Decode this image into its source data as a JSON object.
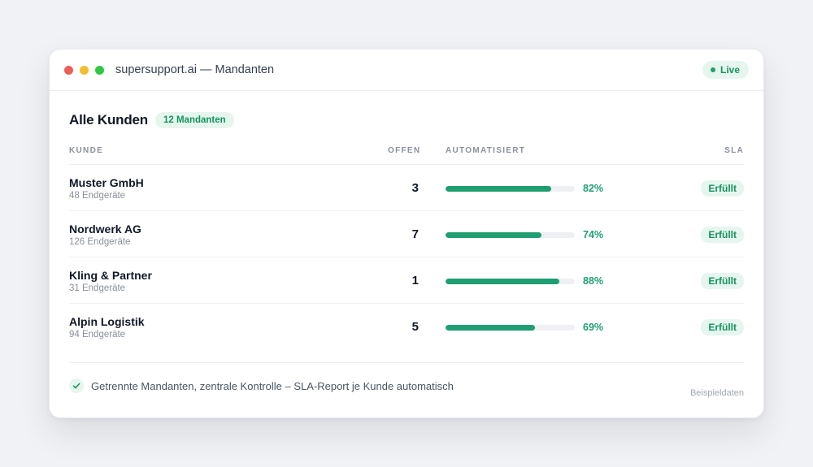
{
  "window": {
    "title": "supersupport.ai — Mandanten",
    "status": "Live"
  },
  "section": {
    "heading": "Alle Kunden",
    "badge": "12 Mandanten"
  },
  "table": {
    "headers": {
      "kunde": "KUNDE",
      "offen": "OFFEN",
      "auto": "AUTOMATISIERT",
      "sla": "SLA"
    },
    "rows": [
      {
        "name": "Muster GmbH",
        "devices": "48 Endgeräte",
        "open": "3",
        "automated_percent": 82,
        "automated_label": "82%",
        "sla": "Erfüllt"
      },
      {
        "name": "Nordwerk AG",
        "devices": "126 Endgeräte",
        "open": "7",
        "automated_percent": 74,
        "automated_label": "74%",
        "sla": "Erfüllt"
      },
      {
        "name": "Kling & Partner",
        "devices": "31 Endgeräte",
        "open": "1",
        "automated_percent": 88,
        "automated_label": "88%",
        "sla": "Erfüllt"
      },
      {
        "name": "Alpin Logistik",
        "devices": "94 Endgeräte",
        "open": "5",
        "automated_percent": 69,
        "automated_label": "69%",
        "sla": "Erfüllt"
      }
    ]
  },
  "footer": {
    "text": "Getrennte Mandanten, zentrale Kontrolle – SLA-Report je Kunde automatisch",
    "note": "Beispieldaten"
  },
  "colors": {
    "accent": "#1f9e72",
    "badge_bg": "#e6f6ef",
    "traffic_red": "#ec5f57",
    "traffic_yellow": "#f4bd2f",
    "traffic_green": "#2fc845"
  }
}
